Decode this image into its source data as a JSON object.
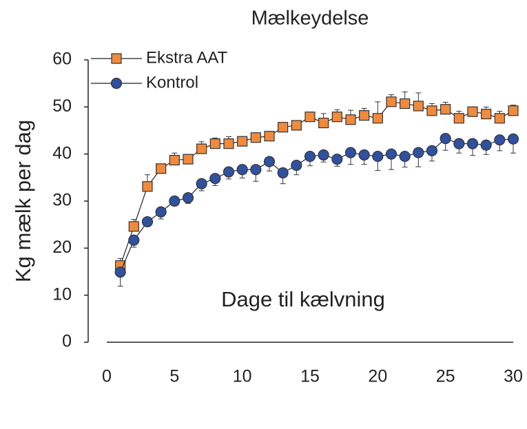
{
  "chart_data": {
    "type": "line",
    "title": "Mælkeydelse",
    "x_label": "Dage til kælvning",
    "y_label": "Kg mælk per dag",
    "xlim": [
      0,
      30
    ],
    "xticks": [
      0,
      5,
      10,
      15,
      20,
      25,
      30
    ],
    "ylim": [
      0,
      60
    ],
    "yticks": [
      0,
      10,
      20,
      30,
      40,
      50,
      60
    ],
    "grid": false,
    "legend": "upper left",
    "x": [
      1,
      2,
      3,
      4,
      5,
      6,
      7,
      8,
      9,
      10,
      11,
      12,
      13,
      14,
      15,
      16,
      17,
      18,
      19,
      20,
      21,
      22,
      23,
      24,
      25,
      26,
      27,
      28,
      29,
      30
    ],
    "series": [
      {
        "name": "Ekstra AAT",
        "color": "#f08a3c",
        "marker": "square",
        "error_direction": "up",
        "values": [
          16.3,
          24.6,
          33.1,
          36.9,
          38.7,
          38.9,
          41.1,
          42.2,
          42.2,
          42.7,
          43.5,
          43.8,
          45.7,
          46.1,
          47.9,
          46.6,
          47.9,
          47.3,
          48.2,
          47.6,
          51.1,
          50.7,
          50.2,
          49.2,
          49.5,
          47.6,
          49.0,
          48.5,
          47.6,
          49.2
        ],
        "error": [
          1.5,
          1.5,
          2.5,
          1,
          1.5,
          1,
          1.5,
          1.2,
          1.5,
          1,
          1,
          1,
          1,
          1,
          1,
          2,
          1.5,
          2,
          1.5,
          3.5,
          1.5,
          2.5,
          2.8,
          1.5,
          1.5,
          1.5,
          1,
          1.5,
          1.5,
          1.2
        ]
      },
      {
        "name": "Kontrol",
        "color": "#3050a0",
        "marker": "circle",
        "error_direction": "down",
        "values": [
          14.9,
          21.7,
          25.6,
          27.7,
          30.0,
          30.7,
          33.7,
          34.8,
          36.2,
          36.7,
          36.7,
          38.4,
          36.0,
          37.6,
          39.5,
          39.8,
          38.9,
          40.3,
          39.8,
          39.5,
          40.0,
          39.5,
          40.3,
          40.7,
          43.3,
          42.2,
          42.2,
          41.9,
          43.0,
          43.2
        ],
        "error": [
          3,
          1.5,
          1,
          1.5,
          1,
          1.2,
          1.5,
          1.5,
          1.5,
          1.8,
          2.5,
          2,
          2.3,
          2,
          2,
          1.5,
          1.5,
          2.5,
          2,
          3,
          3.3,
          2.3,
          3,
          2.2,
          2.5,
          2,
          2.5,
          2,
          2.3,
          3
        ]
      }
    ]
  }
}
